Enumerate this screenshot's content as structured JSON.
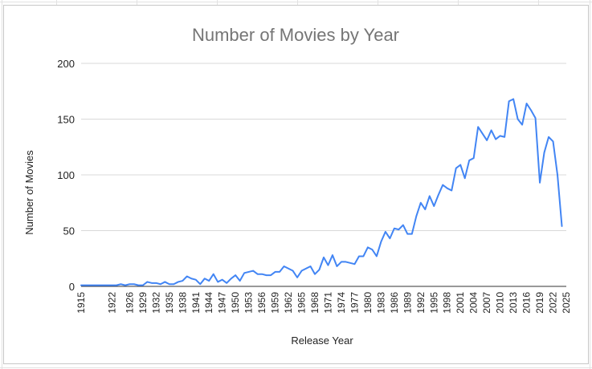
{
  "chart_data": {
    "type": "line",
    "title": "Number of Movies by Year",
    "xlabel": "Release Year",
    "ylabel": "Number of Movies",
    "ylim": [
      0,
      200
    ],
    "yticks": [
      0,
      50,
      100,
      150,
      200
    ],
    "xticks": [
      1915,
      1922,
      1926,
      1929,
      1932,
      1935,
      1938,
      1941,
      1944,
      1947,
      1950,
      1953,
      1956,
      1959,
      1962,
      1965,
      1968,
      1971,
      1974,
      1977,
      1980,
      1983,
      1986,
      1989,
      1992,
      1995,
      1998,
      2001,
      2004,
      2007,
      2010,
      2013,
      2016,
      2019,
      2022,
      2025
    ],
    "grid": true,
    "legend": "none",
    "line_color": "#4285f4",
    "series": [
      {
        "points": [
          [
            1915,
            1
          ],
          [
            1920,
            1
          ],
          [
            1922,
            1
          ],
          [
            1923,
            1
          ],
          [
            1924,
            2
          ],
          [
            1925,
            1
          ],
          [
            1926,
            2
          ],
          [
            1927,
            2
          ],
          [
            1928,
            1
          ],
          [
            1929,
            1
          ],
          [
            1930,
            4
          ],
          [
            1931,
            3
          ],
          [
            1932,
            3
          ],
          [
            1933,
            2
          ],
          [
            1934,
            4
          ],
          [
            1935,
            2
          ],
          [
            1936,
            2
          ],
          [
            1937,
            4
          ],
          [
            1938,
            5
          ],
          [
            1939,
            9
          ],
          [
            1940,
            7
          ],
          [
            1941,
            6
          ],
          [
            1942,
            2
          ],
          [
            1943,
            7
          ],
          [
            1944,
            5
          ],
          [
            1945,
            11
          ],
          [
            1946,
            4
          ],
          [
            1947,
            6
          ],
          [
            1948,
            3
          ],
          [
            1949,
            7
          ],
          [
            1950,
            10
          ],
          [
            1951,
            5
          ],
          [
            1952,
            12
          ],
          [
            1953,
            13
          ],
          [
            1954,
            14
          ],
          [
            1955,
            11
          ],
          [
            1956,
            11
          ],
          [
            1957,
            10
          ],
          [
            1958,
            10
          ],
          [
            1959,
            13
          ],
          [
            1960,
            13
          ],
          [
            1961,
            18
          ],
          [
            1962,
            16
          ],
          [
            1963,
            14
          ],
          [
            1964,
            8
          ],
          [
            1965,
            14
          ],
          [
            1966,
            16
          ],
          [
            1967,
            18
          ],
          [
            1968,
            11
          ],
          [
            1969,
            15
          ],
          [
            1970,
            26
          ],
          [
            1971,
            19
          ],
          [
            1972,
            28
          ],
          [
            1973,
            18
          ],
          [
            1974,
            22
          ],
          [
            1975,
            22
          ],
          [
            1976,
            21
          ],
          [
            1977,
            20
          ],
          [
            1978,
            27
          ],
          [
            1979,
            27
          ],
          [
            1980,
            35
          ],
          [
            1981,
            33
          ],
          [
            1982,
            27
          ],
          [
            1983,
            40
          ],
          [
            1984,
            49
          ],
          [
            1985,
            43
          ],
          [
            1986,
            52
          ],
          [
            1987,
            51
          ],
          [
            1988,
            55
          ],
          [
            1989,
            47
          ],
          [
            1990,
            47
          ],
          [
            1991,
            63
          ],
          [
            1992,
            75
          ],
          [
            1993,
            69
          ],
          [
            1994,
            81
          ],
          [
            1995,
            72
          ],
          [
            1996,
            82
          ],
          [
            1997,
            91
          ],
          [
            1998,
            88
          ],
          [
            1999,
            86
          ],
          [
            2000,
            106
          ],
          [
            2001,
            109
          ],
          [
            2002,
            97
          ],
          [
            2003,
            113
          ],
          [
            2004,
            115
          ],
          [
            2005,
            143
          ],
          [
            2006,
            137
          ],
          [
            2007,
            131
          ],
          [
            2008,
            140
          ],
          [
            2009,
            132
          ],
          [
            2010,
            135
          ],
          [
            2011,
            134
          ],
          [
            2012,
            166
          ],
          [
            2013,
            168
          ],
          [
            2014,
            150
          ],
          [
            2015,
            145
          ],
          [
            2016,
            164
          ],
          [
            2017,
            158
          ],
          [
            2018,
            151
          ],
          [
            2019,
            93
          ],
          [
            2020,
            120
          ],
          [
            2021,
            134
          ],
          [
            2022,
            130
          ],
          [
            2023,
            100
          ],
          [
            2024,
            54
          ]
        ]
      }
    ]
  }
}
